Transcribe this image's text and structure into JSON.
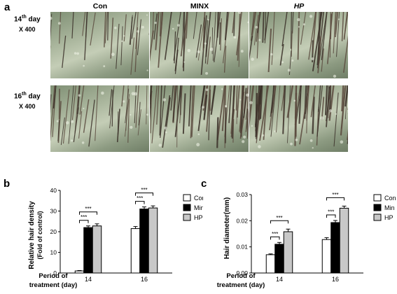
{
  "panel_a": {
    "letter": "a",
    "columns": [
      "Con",
      "MINX",
      "HP"
    ],
    "rows": [
      {
        "day_num": "14",
        "day_sup": "th",
        "day_word": " day",
        "mag": "X 400"
      },
      {
        "day_num": "16",
        "day_sup": "th",
        "day_word": " day",
        "mag": "X 400"
      }
    ]
  },
  "chart_data": [
    {
      "panel": "b",
      "type": "bar",
      "ylabel": "Relative hair density",
      "ylabel2": "(Fold of control)",
      "xlabel": "Period of treatment (day)",
      "xlabel_line1": "Period of",
      "xlabel_line2": "treatment (day)",
      "categories": [
        "14",
        "16"
      ],
      "ylim": [
        0,
        40
      ],
      "yticks": [
        "0",
        "10",
        "20",
        "30",
        "40"
      ],
      "series": [
        {
          "name": "Con",
          "values": [
            1,
            21.5
          ],
          "errors": [
            0.2,
            1.0
          ],
          "color": "#ffffff"
        },
        {
          "name": "Min",
          "values": [
            22,
            31
          ],
          "errors": [
            0.8,
            1.0
          ],
          "color": "#000000"
        },
        {
          "name": "HP",
          "values": [
            22.8,
            31.5
          ],
          "errors": [
            1.0,
            1.0
          ],
          "color": "#c8c8c8"
        }
      ],
      "significance": [
        "***",
        "***",
        "***",
        "***"
      ],
      "legend": "right",
      "grid": false
    },
    {
      "panel": "c",
      "type": "bar",
      "ylabel": "Hair diameter(mm)",
      "xlabel": "Period of treatment (day)",
      "xlabel_line1": "Period of",
      "xlabel_line2": "treatment (day)",
      "categories": [
        "14",
        "16"
      ],
      "ylim": [
        0,
        0.03
      ],
      "yticks": [
        "0.00",
        "0.01",
        "0.02",
        "0.03"
      ],
      "series": [
        {
          "name": "Con",
          "values": [
            0.007,
            0.0128
          ],
          "errors": [
            0.0003,
            0.0007
          ],
          "color": "#ffffff"
        },
        {
          "name": "Min",
          "values": [
            0.011,
            0.0193
          ],
          "errors": [
            0.0007,
            0.0008
          ],
          "color": "#000000"
        },
        {
          "name": "HP",
          "values": [
            0.0158,
            0.0248
          ],
          "errors": [
            0.001,
            0.0008
          ],
          "color": "#c8c8c8"
        }
      ],
      "significance": [
        "***",
        "***",
        "***",
        "***"
      ],
      "legend": "right",
      "grid": false
    }
  ]
}
